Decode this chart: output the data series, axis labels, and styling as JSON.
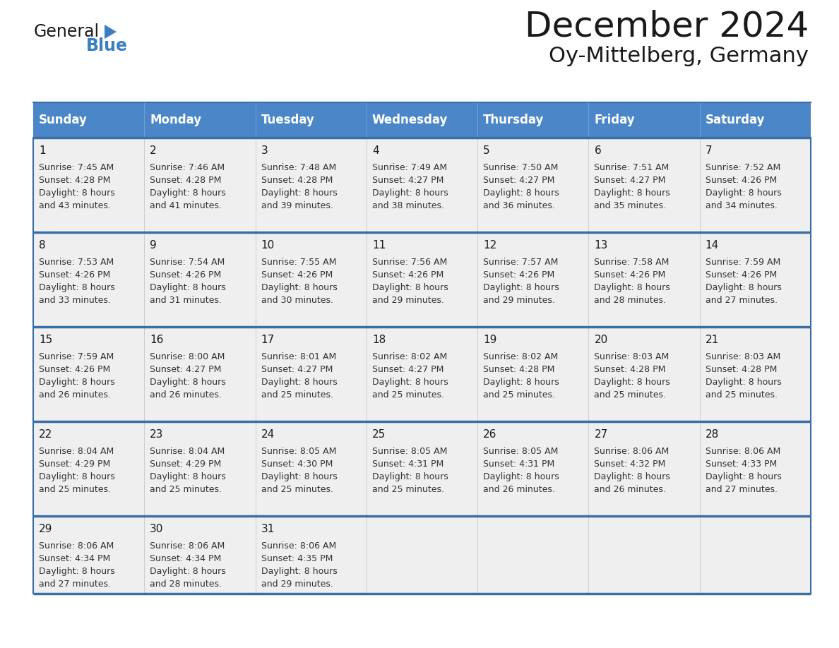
{
  "title": "December 2024",
  "subtitle": "Oy-Mittelberg, Germany",
  "header_color": "#4a86c8",
  "header_text_color": "#ffffff",
  "cell_bg_light": "#efefef",
  "cell_bg_white": "#ffffff",
  "border_color": "#3a6ea5",
  "days_of_week": [
    "Sunday",
    "Monday",
    "Tuesday",
    "Wednesday",
    "Thursday",
    "Friday",
    "Saturday"
  ],
  "weeks": [
    [
      {
        "day": 1,
        "sunrise": "7:45 AM",
        "sunset": "4:28 PM",
        "daylight_line1": "8 hours",
        "daylight_line2": "and 43 minutes."
      },
      {
        "day": 2,
        "sunrise": "7:46 AM",
        "sunset": "4:28 PM",
        "daylight_line1": "8 hours",
        "daylight_line2": "and 41 minutes."
      },
      {
        "day": 3,
        "sunrise": "7:48 AM",
        "sunset": "4:28 PM",
        "daylight_line1": "8 hours",
        "daylight_line2": "and 39 minutes."
      },
      {
        "day": 4,
        "sunrise": "7:49 AM",
        "sunset": "4:27 PM",
        "daylight_line1": "8 hours",
        "daylight_line2": "and 38 minutes."
      },
      {
        "day": 5,
        "sunrise": "7:50 AM",
        "sunset": "4:27 PM",
        "daylight_line1": "8 hours",
        "daylight_line2": "and 36 minutes."
      },
      {
        "day": 6,
        "sunrise": "7:51 AM",
        "sunset": "4:27 PM",
        "daylight_line1": "8 hours",
        "daylight_line2": "and 35 minutes."
      },
      {
        "day": 7,
        "sunrise": "7:52 AM",
        "sunset": "4:26 PM",
        "daylight_line1": "8 hours",
        "daylight_line2": "and 34 minutes."
      }
    ],
    [
      {
        "day": 8,
        "sunrise": "7:53 AM",
        "sunset": "4:26 PM",
        "daylight_line1": "8 hours",
        "daylight_line2": "and 33 minutes."
      },
      {
        "day": 9,
        "sunrise": "7:54 AM",
        "sunset": "4:26 PM",
        "daylight_line1": "8 hours",
        "daylight_line2": "and 31 minutes."
      },
      {
        "day": 10,
        "sunrise": "7:55 AM",
        "sunset": "4:26 PM",
        "daylight_line1": "8 hours",
        "daylight_line2": "and 30 minutes."
      },
      {
        "day": 11,
        "sunrise": "7:56 AM",
        "sunset": "4:26 PM",
        "daylight_line1": "8 hours",
        "daylight_line2": "and 29 minutes."
      },
      {
        "day": 12,
        "sunrise": "7:57 AM",
        "sunset": "4:26 PM",
        "daylight_line1": "8 hours",
        "daylight_line2": "and 29 minutes."
      },
      {
        "day": 13,
        "sunrise": "7:58 AM",
        "sunset": "4:26 PM",
        "daylight_line1": "8 hours",
        "daylight_line2": "and 28 minutes."
      },
      {
        "day": 14,
        "sunrise": "7:59 AM",
        "sunset": "4:26 PM",
        "daylight_line1": "8 hours",
        "daylight_line2": "and 27 minutes."
      }
    ],
    [
      {
        "day": 15,
        "sunrise": "7:59 AM",
        "sunset": "4:26 PM",
        "daylight_line1": "8 hours",
        "daylight_line2": "and 26 minutes."
      },
      {
        "day": 16,
        "sunrise": "8:00 AM",
        "sunset": "4:27 PM",
        "daylight_line1": "8 hours",
        "daylight_line2": "and 26 minutes."
      },
      {
        "day": 17,
        "sunrise": "8:01 AM",
        "sunset": "4:27 PM",
        "daylight_line1": "8 hours",
        "daylight_line2": "and 25 minutes."
      },
      {
        "day": 18,
        "sunrise": "8:02 AM",
        "sunset": "4:27 PM",
        "daylight_line1": "8 hours",
        "daylight_line2": "and 25 minutes."
      },
      {
        "day": 19,
        "sunrise": "8:02 AM",
        "sunset": "4:28 PM",
        "daylight_line1": "8 hours",
        "daylight_line2": "and 25 minutes."
      },
      {
        "day": 20,
        "sunrise": "8:03 AM",
        "sunset": "4:28 PM",
        "daylight_line1": "8 hours",
        "daylight_line2": "and 25 minutes."
      },
      {
        "day": 21,
        "sunrise": "8:03 AM",
        "sunset": "4:28 PM",
        "daylight_line1": "8 hours",
        "daylight_line2": "and 25 minutes."
      }
    ],
    [
      {
        "day": 22,
        "sunrise": "8:04 AM",
        "sunset": "4:29 PM",
        "daylight_line1": "8 hours",
        "daylight_line2": "and 25 minutes."
      },
      {
        "day": 23,
        "sunrise": "8:04 AM",
        "sunset": "4:29 PM",
        "daylight_line1": "8 hours",
        "daylight_line2": "and 25 minutes."
      },
      {
        "day": 24,
        "sunrise": "8:05 AM",
        "sunset": "4:30 PM",
        "daylight_line1": "8 hours",
        "daylight_line2": "and 25 minutes."
      },
      {
        "day": 25,
        "sunrise": "8:05 AM",
        "sunset": "4:31 PM",
        "daylight_line1": "8 hours",
        "daylight_line2": "and 25 minutes."
      },
      {
        "day": 26,
        "sunrise": "8:05 AM",
        "sunset": "4:31 PM",
        "daylight_line1": "8 hours",
        "daylight_line2": "and 26 minutes."
      },
      {
        "day": 27,
        "sunrise": "8:06 AM",
        "sunset": "4:32 PM",
        "daylight_line1": "8 hours",
        "daylight_line2": "and 26 minutes."
      },
      {
        "day": 28,
        "sunrise": "8:06 AM",
        "sunset": "4:33 PM",
        "daylight_line1": "8 hours",
        "daylight_line2": "and 27 minutes."
      }
    ],
    [
      {
        "day": 29,
        "sunrise": "8:06 AM",
        "sunset": "4:34 PM",
        "daylight_line1": "8 hours",
        "daylight_line2": "and 27 minutes."
      },
      {
        "day": 30,
        "sunrise": "8:06 AM",
        "sunset": "4:34 PM",
        "daylight_line1": "8 hours",
        "daylight_line2": "and 28 minutes."
      },
      {
        "day": 31,
        "sunrise": "8:06 AM",
        "sunset": "4:35 PM",
        "daylight_line1": "8 hours",
        "daylight_line2": "and 29 minutes."
      },
      null,
      null,
      null,
      null
    ]
  ],
  "logo_general_color": "#1a1a1a",
  "logo_blue_color": "#3a7fc1",
  "logo_triangle_color": "#3a7fc1",
  "title_fontsize": 36,
  "subtitle_fontsize": 22,
  "header_fontsize": 12,
  "day_num_fontsize": 11,
  "info_fontsize": 9
}
